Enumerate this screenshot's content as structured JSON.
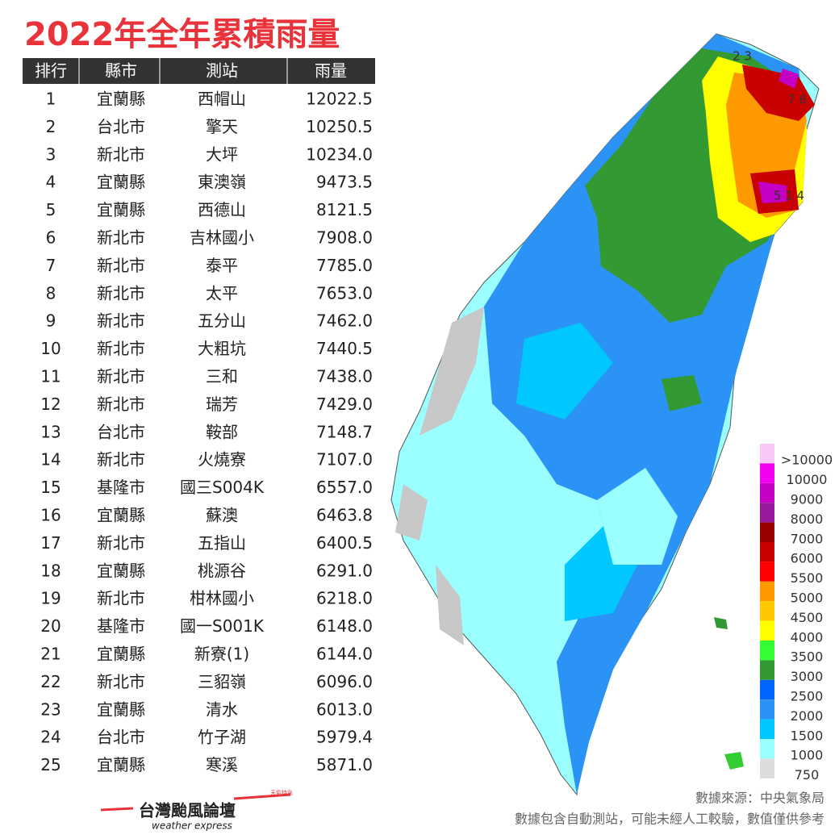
{
  "title": "2022年全年累積雨量",
  "table": {
    "headers": [
      "排行",
      "縣市",
      "測站",
      "雨量"
    ],
    "rows": [
      [
        "1",
        "宜蘭縣",
        "西帽山",
        "12022.5"
      ],
      [
        "2",
        "台北市",
        "擎天",
        "10250.5"
      ],
      [
        "3",
        "新北市",
        "大坪",
        "10234.0"
      ],
      [
        "4",
        "宜蘭縣",
        "東澳嶺",
        "9473.5"
      ],
      [
        "5",
        "宜蘭縣",
        "西德山",
        "8121.5"
      ],
      [
        "6",
        "新北市",
        "吉林國小",
        "7908.0"
      ],
      [
        "7",
        "新北市",
        "泰平",
        "7785.0"
      ],
      [
        "8",
        "新北市",
        "太平",
        "7653.0"
      ],
      [
        "9",
        "新北市",
        "五分山",
        "7462.0"
      ],
      [
        "10",
        "新北市",
        "大粗坑",
        "7440.5"
      ],
      [
        "11",
        "新北市",
        "三和",
        "7438.0"
      ],
      [
        "12",
        "新北市",
        "瑞芳",
        "7429.0"
      ],
      [
        "13",
        "台北市",
        "鞍部",
        "7148.7"
      ],
      [
        "14",
        "新北市",
        "火燒寮",
        "7107.0"
      ],
      [
        "15",
        "基隆市",
        "國三S004K",
        "6557.0"
      ],
      [
        "16",
        "宜蘭縣",
        "蘇澳",
        "6463.8"
      ],
      [
        "17",
        "新北市",
        "五指山",
        "6400.5"
      ],
      [
        "18",
        "宜蘭縣",
        "桃源谷",
        "6291.0"
      ],
      [
        "19",
        "新北市",
        "柑林國小",
        "6218.0"
      ],
      [
        "20",
        "基隆市",
        "國一S001K",
        "6148.0"
      ],
      [
        "21",
        "宜蘭縣",
        "新寮(1)",
        "6144.0"
      ],
      [
        "22",
        "新北市",
        "三貂嶺",
        "6096.0"
      ],
      [
        "23",
        "宜蘭縣",
        "清水",
        "6013.0"
      ],
      [
        "24",
        "台北市",
        "竹子湖",
        "5979.4"
      ],
      [
        "25",
        "宜蘭縣",
        "寒溪",
        "5871.0"
      ]
    ]
  },
  "legend": [
    {
      "label": ">10000",
      "color": "#f9c8f7"
    },
    {
      "label": "10000",
      "color": "#f200f0"
    },
    {
      "label": "9000",
      "color": "#c300c3"
    },
    {
      "label": "8000",
      "color": "#99199c"
    },
    {
      "label": "7000",
      "color": "#980000"
    },
    {
      "label": "6000",
      "color": "#c80000"
    },
    {
      "label": "5500",
      "color": "#ff0000"
    },
    {
      "label": "5000",
      "color": "#ff9900"
    },
    {
      "label": "4500",
      "color": "#ffc800"
    },
    {
      "label": "4000",
      "color": "#ffff00"
    },
    {
      "label": "3500",
      "color": "#33ff33"
    },
    {
      "label": "3000",
      "color": "#339933"
    },
    {
      "label": "2500",
      "color": "#0066ff"
    },
    {
      "label": "2000",
      "color": "#2b93f5"
    },
    {
      "label": "1500",
      "color": "#00c8ff"
    },
    {
      "label": "1000",
      "color": "#9cffff"
    },
    {
      "label": "750",
      "color": "#dcdcdc"
    }
  ],
  "map_labels": [
    "2 3",
    "7 6",
    "5 1 4"
  ],
  "source": "數據來源：中央氣象局",
  "note": "數據包含自動測站，可能未經人工較驗，數值僅供參考",
  "logo": {
    "name": "台灣颱風論壇",
    "sub": "weather express",
    "tag": "天氣特急"
  }
}
